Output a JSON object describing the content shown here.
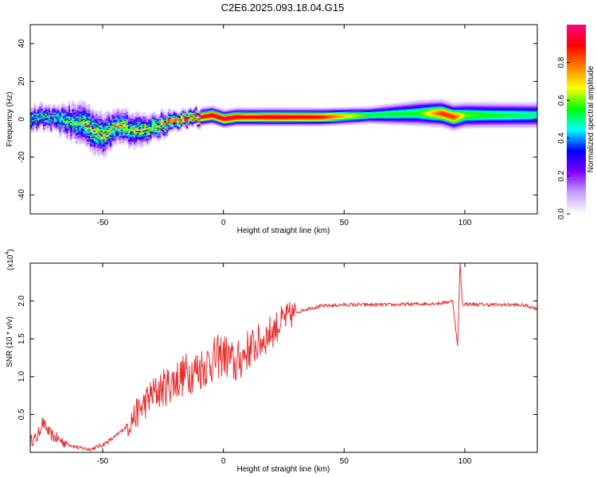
{
  "title": "C2E6.2025.093.18.04.G15",
  "chart_data": [
    {
      "type": "heatmap",
      "xlabel": "Height of straight line (km)",
      "ylabel": "Frequency (Hz)",
      "xlim": [
        -80,
        130
      ],
      "ylim": [
        -50,
        50
      ],
      "x_ticks": [
        -50,
        0,
        50,
        100
      ],
      "y_ticks": [
        -40,
        -20,
        0,
        20,
        40
      ],
      "colorbar": {
        "label": "Normalized spectral amplitude",
        "range": [
          0,
          1
        ],
        "ticks": [
          "0.0",
          "0.2",
          "0.4",
          "0.6",
          "0.8"
        ],
        "colors": [
          "#ffffff",
          "#c7a0ff",
          "#7f00ff",
          "#0000ff",
          "#00ffff",
          "#00ff00",
          "#ffff00",
          "#ff8000",
          "#ff0000",
          "#ff0080"
        ]
      },
      "ridge": {
        "x": [
          -80,
          -70,
          -60,
          -55,
          -50,
          -45,
          -40,
          -35,
          -30,
          -25,
          -20,
          -15,
          -10,
          -5,
          0,
          5,
          10,
          20,
          40,
          60,
          80,
          90,
          95,
          100,
          110,
          130
        ],
        "freq": [
          1,
          0,
          -2,
          -6,
          -9,
          -4,
          -5,
          -6,
          -4,
          -3,
          -1,
          0,
          1,
          2,
          0,
          1,
          1,
          1,
          1,
          2,
          3,
          3,
          1,
          2,
          2,
          2
        ],
        "width": [
          3,
          3,
          5,
          5,
          5,
          4,
          4,
          4,
          3,
          3,
          2,
          2,
          2,
          2,
          2,
          2,
          2,
          2,
          2,
          2,
          3,
          3,
          3,
          3,
          3,
          3
        ],
        "amp": [
          0.45,
          0.45,
          0.5,
          0.6,
          0.55,
          0.6,
          0.55,
          0.55,
          0.6,
          0.7,
          0.8,
          0.85,
          0.9,
          0.95,
          0.95,
          0.95,
          0.9,
          0.95,
          0.9,
          0.55,
          0.55,
          0.85,
          0.85,
          0.6,
          0.55,
          0.5
        ]
      }
    },
    {
      "type": "line",
      "xlabel": "Height of straight line (km)",
      "ylabel": "SNR (10 * v/v)",
      "y_multiplier": "(x10",
      "y_multiplier_exp": "4",
      "xlim": [
        -80,
        130
      ],
      "ylim": [
        0,
        2.5
      ],
      "x_ticks": [
        -50,
        0,
        50,
        100
      ],
      "y_ticks": [
        0.5,
        1.0,
        1.5,
        2.0
      ],
      "y_tick_labels": [
        "0.5",
        "1.0",
        "1.5",
        "2.0"
      ],
      "color": "#e83030",
      "series": [
        {
          "x": [
            -80,
            -77,
            -75,
            -72,
            -70,
            -65,
            -60,
            -55,
            -50,
            -45,
            -40,
            -35,
            -30,
            -25,
            -20,
            -15,
            -10,
            -5,
            0,
            5,
            10,
            15,
            20,
            25,
            30,
            35,
            40,
            50,
            60,
            70,
            80,
            90,
            95,
            97,
            98,
            99,
            100,
            110,
            120,
            125,
            130
          ],
          "y": [
            0.15,
            0.2,
            0.4,
            0.25,
            0.2,
            0.12,
            0.06,
            0.04,
            0.1,
            0.2,
            0.35,
            0.55,
            0.75,
            0.85,
            0.95,
            1.05,
            1.1,
            1.2,
            1.3,
            1.15,
            1.35,
            1.45,
            1.6,
            1.75,
            1.85,
            1.9,
            1.93,
            1.95,
            1.95,
            1.95,
            1.96,
            1.97,
            2.0,
            1.4,
            2.5,
            1.95,
            1.96,
            1.95,
            1.95,
            1.94,
            1.9
          ]
        }
      ]
    }
  ]
}
